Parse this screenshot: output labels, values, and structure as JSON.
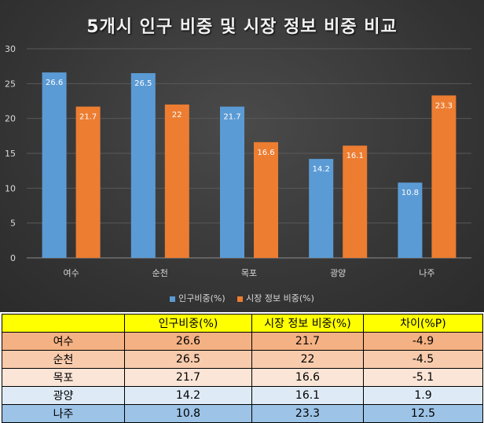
{
  "chart_data": {
    "type": "bar",
    "title": "5개시 인구 비중 및 시장 정보 비중 비교",
    "categories": [
      "여수",
      "순천",
      "목포",
      "광양",
      "나주"
    ],
    "series": [
      {
        "name": "인구비중(%)",
        "values": [
          26.6,
          26.5,
          21.7,
          14.2,
          10.8
        ],
        "color": "#5b9bd5"
      },
      {
        "name": "시장 정보 비중(%)",
        "values": [
          21.7,
          22,
          16.6,
          16.1,
          23.3
        ],
        "color": "#ed7d31"
      }
    ],
    "data_labels": [
      [
        "26.6",
        "26.5",
        "21.7",
        "14.2",
        "10.8"
      ],
      [
        "21.7",
        "22",
        "16.6",
        "16.1",
        "23.3"
      ]
    ],
    "ylim": [
      0,
      30
    ],
    "yticks": [
      "0",
      "5",
      "10",
      "15",
      "20",
      "25",
      "30"
    ],
    "grid": true,
    "legend": "bottom",
    "background": "#3a3a3a"
  },
  "table": {
    "headers": [
      "",
      "인구비중(%)",
      "시장 정보 비중(%)",
      "차이(%P)"
    ],
    "rows": [
      [
        "여수",
        "26.6",
        "21.7",
        "-4.9"
      ],
      [
        "순천",
        "26.5",
        "22",
        "-4.5"
      ],
      [
        "목포",
        "21.7",
        "16.6",
        "-5.1"
      ],
      [
        "광양",
        "14.2",
        "16.1",
        "1.9"
      ],
      [
        "나주",
        "10.8",
        "23.3",
        "12.5"
      ]
    ],
    "header_color": "#ffff00",
    "row_colors": [
      "#f4b183",
      "#f8cbad",
      "#fbe5d6",
      "#deebf7",
      "#9dc3e6"
    ]
  }
}
